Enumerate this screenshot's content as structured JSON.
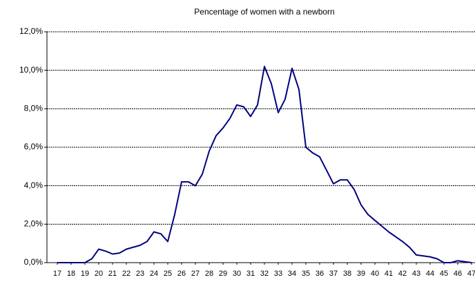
{
  "chart_data": {
    "type": "line",
    "title": "Pencentage of women with a newborn",
    "x": [
      17,
      18,
      19,
      19.5,
      20,
      20.5,
      21,
      21.5,
      22,
      23,
      23.5,
      24,
      24.5,
      25,
      25.5,
      26,
      26.5,
      27,
      27.5,
      28,
      28.5,
      29,
      29.5,
      30,
      30.5,
      31,
      31.5,
      32,
      32.5,
      33,
      33.5,
      34,
      34.5,
      35,
      35.5,
      36,
      36.5,
      37,
      37.5,
      38,
      38.5,
      39,
      39.5,
      40,
      40.5,
      41,
      42,
      42.5,
      43,
      44,
      44.5,
      45,
      45.5,
      46,
      46.5,
      47
    ],
    "series": [
      {
        "color": "#000080",
        "values": [
          0,
          0,
          0,
          0.2,
          0.7,
          0.6,
          0.45,
          0.5,
          0.7,
          0.9,
          1.1,
          1.6,
          1.5,
          1.1,
          2.5,
          4.2,
          4.2,
          4.0,
          4.6,
          5.8,
          6.6,
          7.0,
          7.5,
          8.2,
          8.1,
          7.6,
          8.2,
          10.2,
          9.3,
          7.8,
          8.5,
          10.1,
          9.0,
          6.0,
          5.7,
          5.5,
          4.8,
          4.1,
          4.3,
          4.3,
          3.8,
          3.0,
          2.5,
          2.2,
          1.9,
          1.6,
          1.1,
          0.8,
          0.4,
          0.3,
          0.2,
          0,
          0,
          0.1,
          0.05,
          0
        ]
      }
    ],
    "xlim": [
      16.25,
      47.25
    ],
    "xticks": [
      17,
      18,
      19,
      20,
      21,
      22,
      23,
      24,
      25,
      26,
      27,
      28,
      29,
      30,
      31,
      32,
      33,
      34,
      35,
      36,
      37,
      38,
      39,
      40,
      41,
      42,
      43,
      44,
      45,
      46,
      47
    ],
    "ylim": [
      0,
      12
    ],
    "yticks": [
      {
        "value": 0,
        "label": "0,0%"
      },
      {
        "value": 2,
        "label": "2,0%"
      },
      {
        "value": 4,
        "label": "4,0%"
      },
      {
        "value": 6,
        "label": "6,0%"
      },
      {
        "value": 8,
        "label": "8,0%"
      },
      {
        "value": 10,
        "label": "10,0%"
      },
      {
        "value": 12,
        "label": "12,0%"
      }
    ],
    "grid": true
  }
}
